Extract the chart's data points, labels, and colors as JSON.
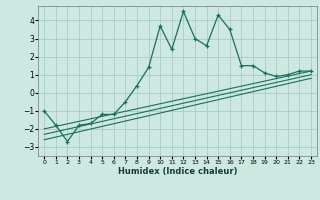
{
  "xlabel": "Humidex (Indice chaleur)",
  "bg_color": "#cce8e0",
  "grid_color": "#aaccC4",
  "line_color": "#1a6e60",
  "xlim": [
    -0.5,
    23.5
  ],
  "ylim": [
    -3.5,
    4.8
  ],
  "yticks": [
    -3,
    -2,
    -1,
    0,
    1,
    2,
    3,
    4
  ],
  "xticks": [
    0,
    1,
    2,
    3,
    4,
    5,
    6,
    7,
    8,
    9,
    10,
    11,
    12,
    13,
    14,
    15,
    16,
    17,
    18,
    19,
    20,
    21,
    22,
    23
  ],
  "main_x": [
    0,
    1,
    2,
    3,
    4,
    5,
    6,
    7,
    8,
    9,
    10,
    11,
    12,
    13,
    14,
    15,
    16,
    17,
    18,
    19,
    20,
    21,
    22,
    23
  ],
  "main_y": [
    -1.0,
    -1.8,
    -2.7,
    -1.8,
    -1.7,
    -1.2,
    -1.2,
    -0.5,
    0.4,
    1.4,
    3.7,
    2.4,
    4.5,
    3.0,
    2.6,
    4.3,
    3.5,
    1.5,
    1.5,
    1.1,
    0.9,
    1.0,
    1.2,
    1.2
  ],
  "line2_x": [
    0,
    23
  ],
  "line2_y": [
    -2.6,
    0.8
  ],
  "line3_x": [
    0,
    23
  ],
  "line3_y": [
    -2.3,
    1.0
  ],
  "line4_x": [
    0,
    23
  ],
  "line4_y": [
    -2.0,
    1.2
  ]
}
